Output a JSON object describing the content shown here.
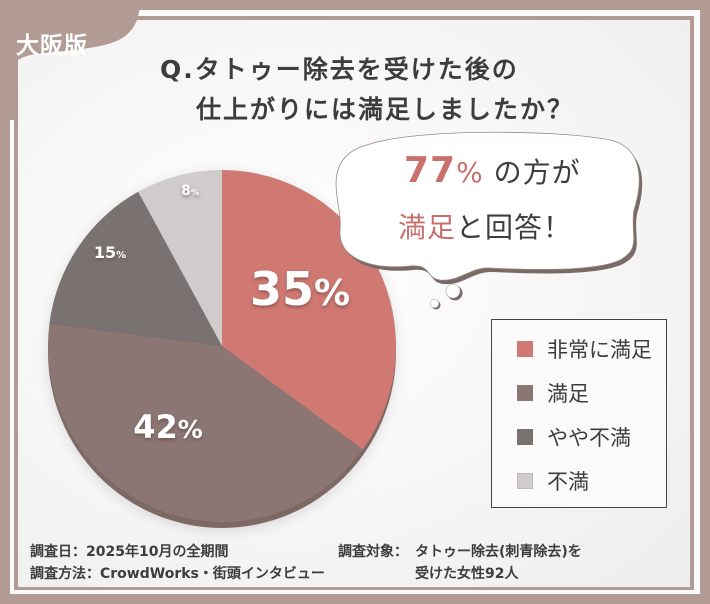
{
  "badge": {
    "label": "大阪版"
  },
  "header": {
    "title_line1": "Q.タトゥー除去を受けた後の",
    "title_line2": "仕上がりには満足しましたか？"
  },
  "callout": {
    "percent": "77",
    "percent_sign": "%",
    "line1_rest": "の方が",
    "line2_accent": "満足",
    "line2_rest": "と回答！"
  },
  "chart_data": {
    "type": "pie",
    "title": "タトゥー除去を受けた後の仕上がりには満足しましたか？",
    "categories": [
      "非常に満足",
      "満足",
      "やや不満",
      "不満"
    ],
    "values": [
      35,
      42,
      15,
      8
    ],
    "labels": [
      "35%",
      "42%",
      "15%",
      "8%"
    ],
    "colors": [
      "#d07872",
      "#8b7673",
      "#7a7270",
      "#cfcccb"
    ],
    "start_angle": "12 o'clock",
    "direction": "clockwise",
    "legend_position": "right",
    "annotation": "77%の方が満足と回答！"
  },
  "legend": {
    "items": [
      {
        "label": "非常に満足",
        "color": "#d07872"
      },
      {
        "label": "満足",
        "color": "#8b7673"
      },
      {
        "label": "やや不満",
        "color": "#7a7270"
      },
      {
        "label": "不満",
        "color": "#cfcccb"
      }
    ]
  },
  "footer": {
    "date": "調査日：2025年10月の全期間",
    "method": "調査方法：CrowdWorks・街頭インタビュー",
    "target_label": "調査対象：",
    "target_line1": "タトゥー除去(刺青除去)を",
    "target_line2": "受けた女性92人"
  },
  "colors": {
    "frame": "#b39b95",
    "accent": "#c9706d",
    "text": "#3d3d3d"
  }
}
